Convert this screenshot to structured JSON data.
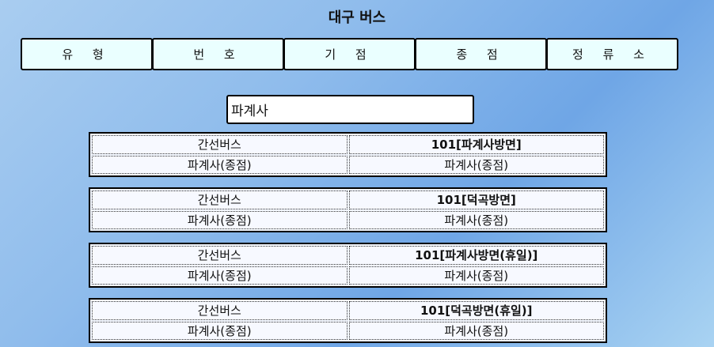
{
  "header": {
    "title": "대구 버스"
  },
  "tabs": [
    {
      "label": "유 형"
    },
    {
      "label": "번 호"
    },
    {
      "label": "기 점"
    },
    {
      "label": "종 점"
    },
    {
      "label": "정 류 소"
    }
  ],
  "search": {
    "value": "파계사"
  },
  "results": [
    {
      "type": "간선버스",
      "route": "101[파계사방면]",
      "start": "파계사(종점)",
      "end": "파계사(종점)"
    },
    {
      "type": "간선버스",
      "route": "101[덕곡방면]",
      "start": "파계사(종점)",
      "end": "파계사(종점)"
    },
    {
      "type": "간선버스",
      "route": "101[파계사방면(휴일)]",
      "start": "파계사(종점)",
      "end": "파계사(종점)"
    },
    {
      "type": "간선버스",
      "route": "101[덕곡방면(휴일)]",
      "start": "파계사(종점)",
      "end": "파계사(종점)"
    }
  ]
}
